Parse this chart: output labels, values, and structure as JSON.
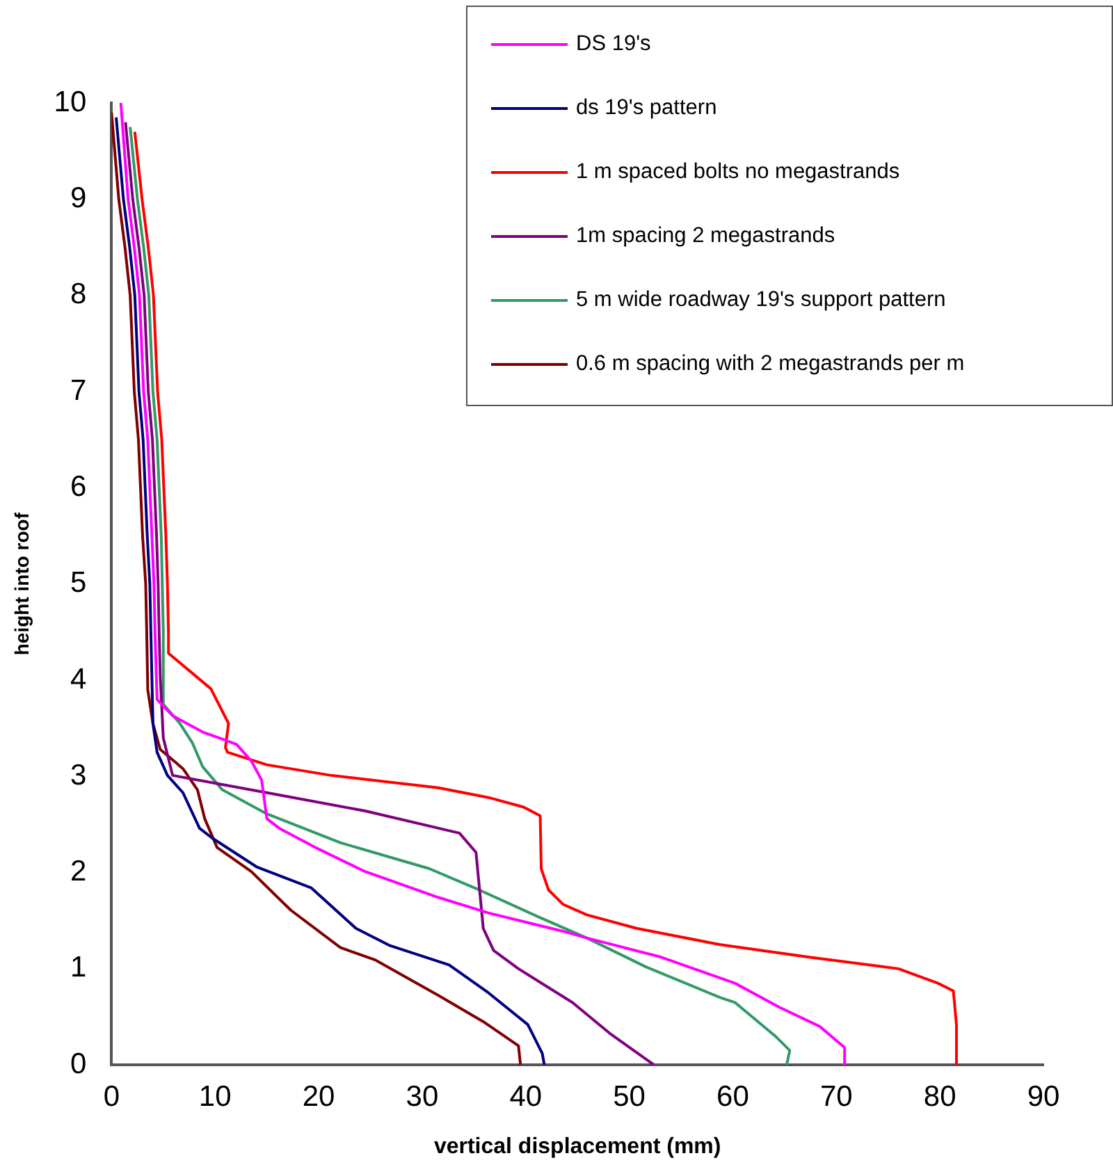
{
  "chart_data": {
    "type": "line",
    "xlabel": "vertical displacement (mm)",
    "ylabel": "height into roof",
    "xlim": [
      0,
      90
    ],
    "xticks": [
      0,
      10,
      20,
      30,
      40,
      50,
      60,
      70,
      80,
      90
    ],
    "ylim": [
      0,
      10
    ],
    "yticks": [
      0,
      1,
      2,
      3,
      4,
      5,
      6,
      7,
      8,
      9,
      10
    ],
    "grid": false,
    "legend": "top right",
    "marker": "none",
    "line_style": "solid",
    "series": [
      {
        "name": "DS 19's",
        "color": "#ff00ff",
        "x": [
          0.9,
          1.6,
          2.2,
          2.7,
          3.1,
          3.5,
          3.7,
          3.9,
          4.1,
          4.2,
          4.4,
          5.9,
          8.8,
          10.9,
          12.1,
          13.5,
          14.5,
          15,
          16.2,
          19.7,
          24.5,
          31.6,
          36.4,
          43.6,
          45.9,
          53.1,
          60.2,
          64.5,
          68.4,
          70.8,
          70.8
        ],
        "values": [
          10,
          9,
          8.5,
          8,
          7,
          6.5,
          6,
          5.5,
          5,
          4.5,
          3.8,
          3.63,
          3.46,
          3.38,
          3.33,
          3.16,
          2.96,
          2.56,
          2.46,
          2.26,
          2.01,
          1.74,
          1.58,
          1.39,
          1.32,
          1.12,
          0.85,
          0.6,
          0.4,
          0.18,
          0
        ]
      },
      {
        "name": "ds 19's pattern",
        "color": "#000080",
        "x": [
          0.45,
          1.15,
          1.75,
          2.25,
          2.65,
          3.05,
          3.25,
          3.45,
          3.7,
          3.8,
          4,
          4.4,
          5.4,
          6.9,
          8.5,
          9.7,
          14,
          19.3,
          23.6,
          26.9,
          32.6,
          36.4,
          40.2,
          41.6,
          41.8
        ],
        "values": [
          9.85,
          9,
          8.5,
          8,
          7,
          6.5,
          6,
          5.5,
          5,
          4.5,
          3.55,
          3.25,
          3.01,
          2.83,
          2.46,
          2.36,
          2.06,
          1.84,
          1.42,
          1.24,
          1.04,
          0.75,
          0.42,
          0.12,
          0
        ]
      },
      {
        "name": "1 m spaced bolts no megastrands",
        "color": "#ff0000",
        "x": [
          2.25,
          2.95,
          3.55,
          4.05,
          4.45,
          4.85,
          5.05,
          5.25,
          5.4,
          5.5,
          5.5,
          9.6,
          11.3,
          11,
          11.2,
          15,
          21.2,
          31.6,
          36.4,
          39.8,
          41.4,
          41.5,
          42.2,
          43.6,
          45.9,
          50.7,
          58.8,
          67.4,
          76,
          79.8,
          81.3,
          81.6,
          81.6
        ],
        "values": [
          9.7,
          9,
          8.5,
          8,
          7,
          6.5,
          6,
          5.5,
          5,
          4.5,
          4.28,
          3.91,
          3.55,
          3.3,
          3.25,
          3.12,
          3.01,
          2.88,
          2.78,
          2.68,
          2.59,
          2.04,
          1.82,
          1.67,
          1.56,
          1.42,
          1.25,
          1.12,
          1,
          0.85,
          0.77,
          0.42,
          0
        ]
      },
      {
        "name": "1m spacing 2 megastrands",
        "color": "#800080",
        "x": [
          1.35,
          2.05,
          2.65,
          3.15,
          3.55,
          3.95,
          4.15,
          4.35,
          4.5,
          4.6,
          4.7,
          5,
          5.9,
          15,
          24.5,
          33.6,
          35.2,
          35.9,
          36.9,
          39.3,
          44.5,
          48.1,
          52.4
        ],
        "values": [
          9.8,
          9,
          8.5,
          8,
          7,
          6.5,
          6,
          5.5,
          5,
          4.5,
          4.05,
          3.4,
          3.01,
          2.83,
          2.64,
          2.41,
          2.21,
          1.42,
          1.19,
          1,
          0.65,
          0.33,
          0
        ]
      },
      {
        "name": "5 m wide roadway 19's support pattern",
        "color": "#339966",
        "x": [
          1.8,
          2.5,
          3.1,
          3.6,
          4,
          4.4,
          4.6,
          4.8,
          4.9,
          5,
          5,
          6.6,
          7.8,
          8.8,
          10.7,
          15,
          22.1,
          30.7,
          35.5,
          41.2,
          45.9,
          51.6,
          58.8,
          60.2,
          64.1,
          65.5,
          65.2
        ],
        "values": [
          9.75,
          9,
          8.5,
          8,
          7,
          6.5,
          6,
          5.5,
          5,
          4.5,
          3.75,
          3.55,
          3.35,
          3.1,
          2.86,
          2.61,
          2.31,
          2.04,
          1.82,
          1.54,
          1.32,
          1.02,
          0.7,
          0.65,
          0.3,
          0.15,
          0
        ]
      },
      {
        "name": "0.6 m spacing with 2 megastrands per m",
        "color": "#800000",
        "x": [
          0,
          0.7,
          1.3,
          1.8,
          2.2,
          2.6,
          2.8,
          3,
          3.3,
          3.4,
          3.5,
          4,
          4.7,
          6.9,
          8.3,
          9,
          10.2,
          13.5,
          17.3,
          22.1,
          25.5,
          31.6,
          35.9,
          39.3,
          39.5
        ],
        "values": [
          9.9,
          9,
          8.5,
          8,
          7,
          6.5,
          6,
          5.5,
          5,
          4.5,
          3.9,
          3.55,
          3.28,
          3.08,
          2.86,
          2.56,
          2.26,
          2.01,
          1.61,
          1.22,
          1.09,
          0.72,
          0.45,
          0.2,
          0
        ]
      }
    ]
  }
}
